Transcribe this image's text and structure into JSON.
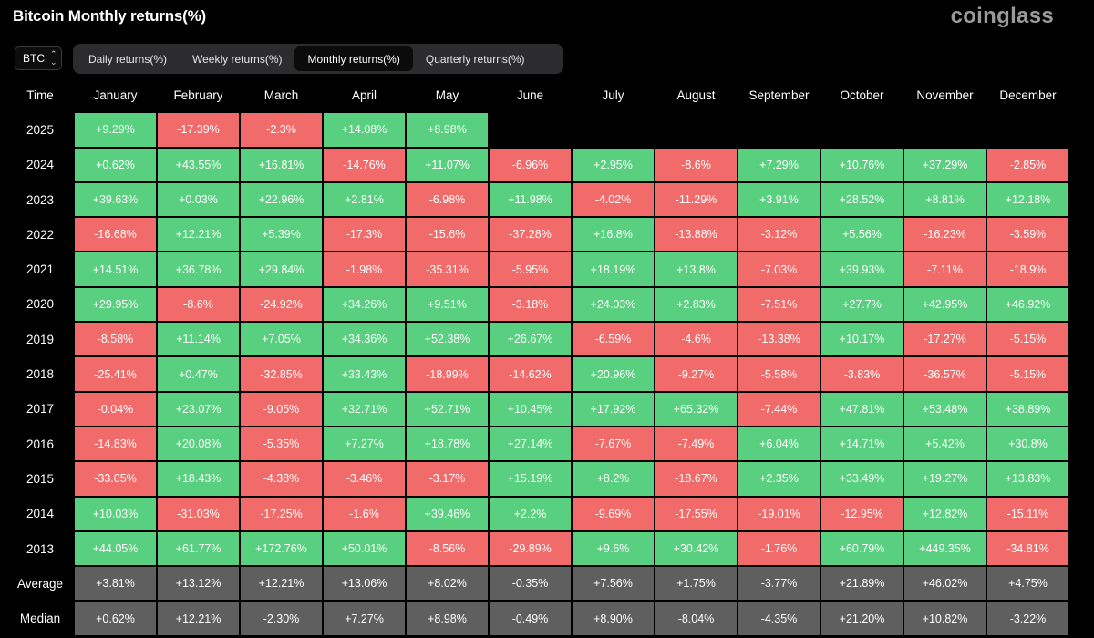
{
  "header": {
    "title": "Bitcoin Monthly returns(%)",
    "brand": "coinglass",
    "asset_selector": "BTC"
  },
  "tabs": [
    {
      "label": "Daily returns(%)",
      "active": false
    },
    {
      "label": "Weekly returns(%)",
      "active": false
    },
    {
      "label": "Monthly returns(%)",
      "active": true
    },
    {
      "label": "Quarterly returns(%)",
      "active": false
    }
  ],
  "colors": {
    "positive": "#59d07f",
    "negative": "#f26b6b",
    "stat": "#5f5f5f",
    "background": "#000000"
  },
  "chart_data": {
    "type": "table",
    "title": "Bitcoin Monthly returns(%)",
    "row_header": "Time",
    "columns": [
      "January",
      "February",
      "March",
      "April",
      "May",
      "June",
      "July",
      "August",
      "September",
      "October",
      "November",
      "December"
    ],
    "rows": [
      {
        "label": "2025",
        "values": [
          "+9.29%",
          "-17.39%",
          "-2.3%",
          "+14.08%",
          "+8.98%",
          "",
          "",
          "",
          "",
          "",
          "",
          ""
        ]
      },
      {
        "label": "2024",
        "values": [
          "+0.62%",
          "+43.55%",
          "+16.81%",
          "-14.76%",
          "+11.07%",
          "-6.96%",
          "+2.95%",
          "-8.6%",
          "+7.29%",
          "+10.76%",
          "+37.29%",
          "-2.85%"
        ]
      },
      {
        "label": "2023",
        "values": [
          "+39.63%",
          "+0.03%",
          "+22.96%",
          "+2.81%",
          "-6.98%",
          "+11.98%",
          "-4.02%",
          "-11.29%",
          "+3.91%",
          "+28.52%",
          "+8.81%",
          "+12.18%"
        ]
      },
      {
        "label": "2022",
        "values": [
          "-16.68%",
          "+12.21%",
          "+5.39%",
          "-17.3%",
          "-15.6%",
          "-37.28%",
          "+16.8%",
          "-13.88%",
          "-3.12%",
          "+5.56%",
          "-16.23%",
          "-3.59%"
        ]
      },
      {
        "label": "2021",
        "values": [
          "+14.51%",
          "+36.78%",
          "+29.84%",
          "-1.98%",
          "-35.31%",
          "-5.95%",
          "+18.19%",
          "+13.8%",
          "-7.03%",
          "+39.93%",
          "-7.11%",
          "-18.9%"
        ]
      },
      {
        "label": "2020",
        "values": [
          "+29.95%",
          "-8.6%",
          "-24.92%",
          "+34.26%",
          "+9.51%",
          "-3.18%",
          "+24.03%",
          "+2.83%",
          "-7.51%",
          "+27.7%",
          "+42.95%",
          "+46.92%"
        ]
      },
      {
        "label": "2019",
        "values": [
          "-8.58%",
          "+11.14%",
          "+7.05%",
          "+34.36%",
          "+52.38%",
          "+26.67%",
          "-6.59%",
          "-4.6%",
          "-13.38%",
          "+10.17%",
          "-17.27%",
          "-5.15%"
        ]
      },
      {
        "label": "2018",
        "values": [
          "-25.41%",
          "+0.47%",
          "-32.85%",
          "+33.43%",
          "-18.99%",
          "-14.62%",
          "+20.96%",
          "-9.27%",
          "-5.58%",
          "-3.83%",
          "-36.57%",
          "-5.15%"
        ]
      },
      {
        "label": "2017",
        "values": [
          "-0.04%",
          "+23.07%",
          "-9.05%",
          "+32.71%",
          "+52.71%",
          "+10.45%",
          "+17.92%",
          "+65.32%",
          "-7.44%",
          "+47.81%",
          "+53.48%",
          "+38.89%"
        ]
      },
      {
        "label": "2016",
        "values": [
          "-14.83%",
          "+20.08%",
          "-5.35%",
          "+7.27%",
          "+18.78%",
          "+27.14%",
          "-7.67%",
          "-7.49%",
          "+6.04%",
          "+14.71%",
          "+5.42%",
          "+30.8%"
        ]
      },
      {
        "label": "2015",
        "values": [
          "-33.05%",
          "+18.43%",
          "-4.38%",
          "-3.46%",
          "-3.17%",
          "+15.19%",
          "+8.2%",
          "-18.67%",
          "+2.35%",
          "+33.49%",
          "+19.27%",
          "+13.83%"
        ]
      },
      {
        "label": "2014",
        "values": [
          "+10.03%",
          "-31.03%",
          "-17.25%",
          "-1.6%",
          "+39.46%",
          "+2.2%",
          "-9.69%",
          "-17.55%",
          "-19.01%",
          "-12.95%",
          "+12.82%",
          "-15.11%"
        ]
      },
      {
        "label": "2013",
        "values": [
          "+44.05%",
          "+61.77%",
          "+172.76%",
          "+50.01%",
          "-8.56%",
          "-29.89%",
          "+9.6%",
          "+30.42%",
          "-1.76%",
          "+60.79%",
          "+449.35%",
          "-34.81%"
        ]
      }
    ],
    "summary_rows": [
      {
        "label": "Average",
        "values": [
          "+3.81%",
          "+13.12%",
          "+12.21%",
          "+13.06%",
          "+8.02%",
          "-0.35%",
          "+7.56%",
          "+1.75%",
          "-3.77%",
          "+21.89%",
          "+46.02%",
          "+4.75%"
        ]
      },
      {
        "label": "Median",
        "values": [
          "+0.62%",
          "+12.21%",
          "-2.30%",
          "+7.27%",
          "+8.98%",
          "-0.49%",
          "+8.90%",
          "-8.04%",
          "-4.35%",
          "+21.20%",
          "+10.82%",
          "-3.22%"
        ]
      }
    ]
  }
}
